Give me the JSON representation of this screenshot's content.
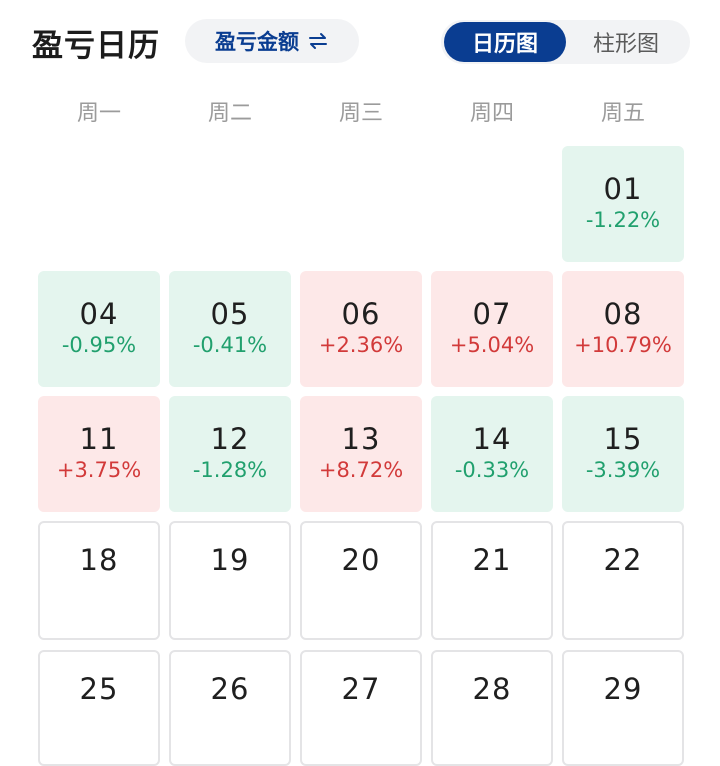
{
  "header": {
    "title": "盈亏日历",
    "mode_toggle_label": "盈亏金额",
    "views": [
      {
        "label": "日历图",
        "active": true
      },
      {
        "label": "柱形图",
        "active": false
      }
    ]
  },
  "weekdays": [
    "周一",
    "周二",
    "周三",
    "周四",
    "周五"
  ],
  "colors": {
    "accent": "#0a3d91",
    "gain": "#d23a3a",
    "loss": "#21a06e",
    "gain_bg": "#fde8e8",
    "loss_bg": "#e4f5ee"
  },
  "weeks": [
    [
      null,
      null,
      null,
      null,
      {
        "day": "01",
        "pct": "-1.22%",
        "trend": "loss"
      }
    ],
    [
      {
        "day": "04",
        "pct": "-0.95%",
        "trend": "loss"
      },
      {
        "day": "05",
        "pct": "-0.41%",
        "trend": "loss"
      },
      {
        "day": "06",
        "pct": "+2.36%",
        "trend": "gain"
      },
      {
        "day": "07",
        "pct": "+5.04%",
        "trend": "gain"
      },
      {
        "day": "08",
        "pct": "+10.79%",
        "trend": "gain"
      }
    ],
    [
      {
        "day": "11",
        "pct": "+3.75%",
        "trend": "gain"
      },
      {
        "day": "12",
        "pct": "-1.28%",
        "trend": "loss"
      },
      {
        "day": "13",
        "pct": "+8.72%",
        "trend": "gain"
      },
      {
        "day": "14",
        "pct": "-0.33%",
        "trend": "loss"
      },
      {
        "day": "15",
        "pct": "-3.39%",
        "trend": "loss"
      }
    ],
    [
      {
        "day": "18",
        "pct": "",
        "trend": "none"
      },
      {
        "day": "19",
        "pct": "",
        "trend": "none"
      },
      {
        "day": "20",
        "pct": "",
        "trend": "none"
      },
      {
        "day": "21",
        "pct": "",
        "trend": "none"
      },
      {
        "day": "22",
        "pct": "",
        "trend": "none"
      }
    ],
    [
      {
        "day": "25",
        "pct": "",
        "trend": "none"
      },
      {
        "day": "26",
        "pct": "",
        "trend": "none"
      },
      {
        "day": "27",
        "pct": "",
        "trend": "none"
      },
      {
        "day": "28",
        "pct": "",
        "trend": "none"
      },
      {
        "day": "29",
        "pct": "",
        "trend": "none"
      }
    ]
  ]
}
